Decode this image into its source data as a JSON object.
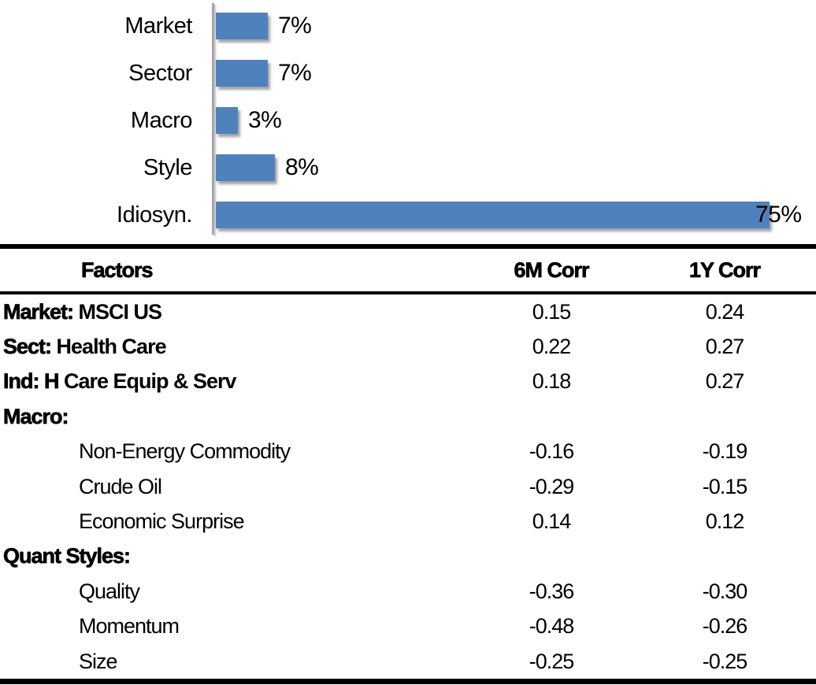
{
  "chart_data": {
    "type": "bar",
    "orientation": "horizontal",
    "title": "",
    "categories": [
      "Market",
      "Sector",
      "Macro",
      "Style",
      "Idiosyn."
    ],
    "values": [
      7,
      7,
      3,
      8,
      75
    ],
    "value_labels": [
      "7%",
      "7%",
      "3%",
      "8%",
      "75%"
    ],
    "xlim": [
      0,
      80
    ],
    "value_axis_hidden": true,
    "grid": false,
    "legend": "none",
    "bar_color": "#4F81BD",
    "axis_color": "#A6A6A6",
    "label_overlaps_bar": [
      false,
      false,
      false,
      false,
      true
    ]
  },
  "table": {
    "columns": [
      "Factors",
      "6M Corr",
      "1Y Corr"
    ],
    "rows": [
      {
        "prefix": "Market:",
        "rest": " MSCI US",
        "indent": false,
        "c6m": "0.15",
        "c1y": "0.24"
      },
      {
        "prefix": "Sect:",
        "rest": " Health Care",
        "indent": false,
        "c6m": "0.22",
        "c1y": "0.27"
      },
      {
        "prefix": "Ind: H",
        "rest": " Care Equip & Serv",
        "indent": false,
        "c6m": "0.18",
        "c1y": "0.27"
      },
      {
        "prefix": "Macro:",
        "rest": "",
        "indent": false,
        "c6m": "",
        "c1y": ""
      },
      {
        "prefix": "",
        "rest": "Non-Energy Commodity",
        "indent": true,
        "c6m": "-0.16",
        "c1y": "-0.19"
      },
      {
        "prefix": "",
        "rest": "Crude Oil",
        "indent": true,
        "c6m": "-0.29",
        "c1y": "-0.15"
      },
      {
        "prefix": "",
        "rest": "Economic Surprise",
        "indent": true,
        "c6m": "0.14",
        "c1y": "0.12"
      },
      {
        "prefix": "Quant Styles:",
        "rest": "",
        "indent": false,
        "c6m": "",
        "c1y": ""
      },
      {
        "prefix": "",
        "rest": "Quality",
        "indent": true,
        "c6m": "-0.36",
        "c1y": "-0.30"
      },
      {
        "prefix": "",
        "rest": "Momentum",
        "indent": true,
        "c6m": "-0.48",
        "c1y": "-0.26"
      },
      {
        "prefix": "",
        "rest": "Size",
        "indent": true,
        "c6m": "-0.25",
        "c1y": "-0.25"
      }
    ]
  }
}
